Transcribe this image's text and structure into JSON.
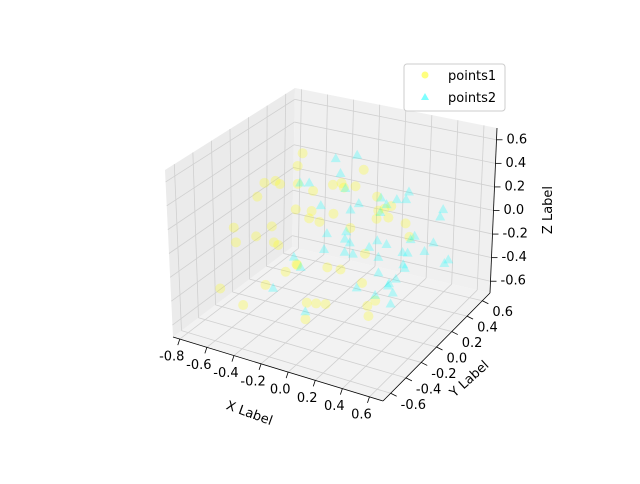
{
  "chart_data": {
    "type": "scatter",
    "projection": "3d",
    "xlabel": "X Label",
    "ylabel": "Y Label",
    "zlabel": "Z Label",
    "xlim": [
      -0.85,
      0.7
    ],
    "ylim": [
      -0.7,
      0.7
    ],
    "zlim": [
      -0.7,
      0.7
    ],
    "x_ticks": [
      "-0.8",
      "-0.6",
      "-0.4",
      "-0.2",
      "0.0",
      "0.2",
      "0.4",
      "0.6"
    ],
    "y_ticks": [
      "-0.6",
      "-0.4",
      "-0.2",
      "0.0",
      "0.2",
      "0.4",
      "0.6"
    ],
    "z_ticks": [
      "-0.6",
      "-0.4",
      "-0.2",
      "0.0",
      "0.2",
      "0.4",
      "0.6"
    ],
    "grid": true,
    "legend_position": "upper right",
    "series": [
      {
        "name": "points1",
        "marker": "circle",
        "color": "#ffff00",
        "alpha": 0.25,
        "x": [
          -0.72,
          -0.65,
          -0.6,
          -0.55,
          -0.7,
          -0.5,
          -0.45,
          -0.62,
          -0.4,
          -0.35,
          -0.3,
          -0.25,
          -0.2,
          -0.15,
          -0.1,
          -0.05,
          0.0,
          0.05,
          0.1,
          0.15,
          0.2,
          0.25,
          0.3,
          0.35,
          -0.68,
          -0.58,
          -0.48,
          -0.38,
          -0.28,
          -0.18,
          -0.08,
          0.02,
          0.12,
          0.22,
          0.32,
          0.42,
          -0.6,
          -0.5,
          -0.4,
          -0.3,
          -0.2,
          -0.1,
          0.0,
          0.1,
          0.2,
          0.3,
          -0.55,
          -0.45,
          -0.35,
          -0.25
        ],
        "y": [
          0.1,
          0.2,
          -0.1,
          0.3,
          -0.2,
          0.0,
          0.15,
          -0.3,
          0.25,
          -0.15,
          0.05,
          0.35,
          -0.25,
          0.1,
          -0.05,
          0.2,
          -0.35,
          0.3,
          -0.1,
          0.0,
          0.15,
          -0.2,
          0.25,
          -0.3,
          -0.4,
          0.4,
          -0.45,
          0.45,
          -0.5,
          0.5,
          -0.35,
          0.35,
          -0.25,
          0.2,
          -0.15,
          0.1,
          0.0,
          -0.05,
          0.05,
          -0.1,
          0.3,
          -0.3,
          0.4,
          -0.4,
          0.2,
          -0.2,
          0.1,
          -0.15,
          0.25,
          0.0
        ],
        "z": [
          0.1,
          0.2,
          -0.1,
          0.3,
          0.0,
          -0.2,
          0.25,
          -0.05,
          0.15,
          -0.3,
          0.05,
          0.2,
          -0.15,
          0.1,
          -0.25,
          0.3,
          -0.35,
          0.0,
          0.15,
          -0.1,
          0.2,
          -0.2,
          0.05,
          -0.3,
          -0.4,
          0.35,
          -0.45,
          0.1,
          -0.2,
          0.25,
          -0.5,
          0.15,
          -0.1,
          0.2,
          -0.35,
          0.05,
          0.3,
          -0.15,
          0.1,
          -0.25,
          0.2,
          -0.4,
          0.0,
          -0.3,
          0.1,
          -0.45,
          0.25,
          0.05,
          -0.1,
          0.15
        ]
      },
      {
        "name": "points2",
        "marker": "triangle",
        "color": "#00ffff",
        "alpha": 0.25,
        "x": [
          -0.2,
          -0.1,
          0.0,
          0.1,
          0.2,
          0.3,
          0.4,
          0.5,
          0.6,
          -0.3,
          -0.15,
          0.05,
          0.15,
          0.25,
          0.35,
          0.45,
          0.55,
          0.65,
          -0.25,
          -0.05,
          0.1,
          0.2,
          0.3,
          0.4,
          0.5,
          0.6,
          -0.35,
          -0.2,
          -0.1,
          0.0,
          0.1,
          0.2,
          0.3,
          0.4,
          0.5,
          0.55,
          -0.4,
          -0.3,
          0.0,
          0.15,
          0.25,
          0.35,
          0.45,
          0.6,
          0.65,
          -0.15,
          0.05,
          0.2,
          0.3,
          0.4
        ],
        "y": [
          0.2,
          0.1,
          0.0,
          -0.1,
          0.3,
          -0.2,
          0.15,
          -0.3,
          0.25,
          0.05,
          -0.05,
          0.35,
          -0.25,
          0.1,
          0.2,
          -0.15,
          0.3,
          -0.35,
          0.4,
          -0.4,
          0.0,
          0.1,
          -0.1,
          0.2,
          -0.2,
          0.3,
          -0.3,
          0.45,
          -0.45,
          0.15,
          -0.15,
          0.05,
          0.25,
          -0.25,
          0.35,
          -0.35,
          0.1,
          -0.05,
          0.5,
          -0.5,
          0.0,
          0.2,
          -0.2,
          0.1,
          -0.1,
          0.3,
          -0.3,
          0.4,
          -0.4,
          0.05
        ],
        "z": [
          0.5,
          0.45,
          0.4,
          0.3,
          0.2,
          0.1,
          0.0,
          -0.1,
          -0.2,
          0.35,
          0.25,
          0.15,
          0.05,
          -0.05,
          -0.15,
          -0.25,
          0.2,
          0.1,
          -0.3,
          -0.4,
          0.3,
          0.2,
          0.1,
          0.0,
          -0.1,
          -0.2,
          -0.35,
          0.4,
          0.05,
          -0.5,
          0.15,
          -0.45,
          0.25,
          -0.05,
          0.1,
          -0.2,
          0.3,
          -0.3,
          0.0,
          0.2,
          -0.1,
          0.35,
          -0.15,
          0.05,
          0.1,
          -0.25,
          0.2,
          -0.4,
          0.15,
          -0.05
        ]
      }
    ]
  }
}
